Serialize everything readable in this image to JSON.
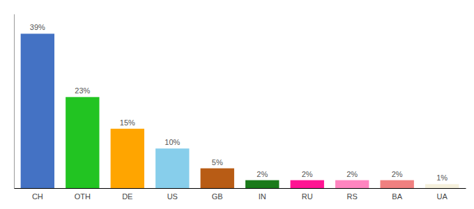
{
  "chart_data": {
    "type": "bar",
    "categories": [
      "CH",
      "OTH",
      "DE",
      "US",
      "GB",
      "IN",
      "RU",
      "RS",
      "BA",
      "UA"
    ],
    "values": [
      39,
      23,
      15,
      10,
      5,
      2,
      2,
      2,
      2,
      1
    ],
    "value_labels": [
      "39%",
      "23%",
      "15%",
      "10%",
      "5%",
      "2%",
      "2%",
      "2%",
      "2%",
      "1%"
    ],
    "colors": [
      "#4472C4",
      "#22C422",
      "#FFA500",
      "#87CEEB",
      "#B85C15",
      "#1A7A1A",
      "#FF1493",
      "#FF85C0",
      "#F08080",
      "#F5F0DC"
    ],
    "data_labels": true,
    "ylim": [
      0,
      44
    ],
    "tick_labels": "x",
    "grid": false
  }
}
